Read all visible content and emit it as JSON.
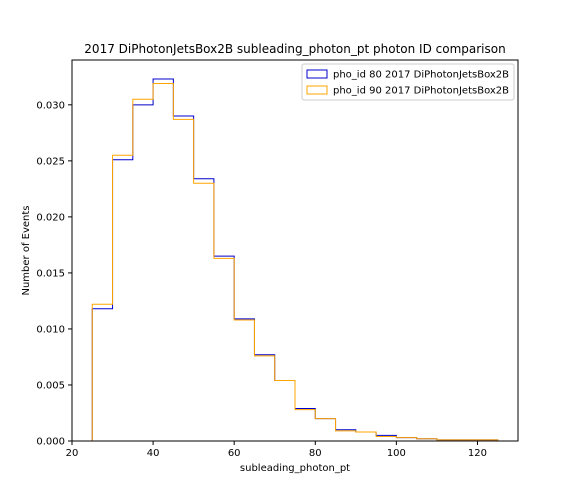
{
  "chart_data": {
    "type": "histogram",
    "title": "2017 DiPhotonJetsBox2B subleading_photon_pt photon ID comparison",
    "xlabel": "subleading_photon_pt",
    "ylabel": "Number of Events",
    "xlim": [
      20,
      130
    ],
    "ylim": [
      0,
      0.034
    ],
    "xticks": [
      20,
      40,
      60,
      80,
      100,
      120
    ],
    "yticks": [
      "0.000",
      "0.005",
      "0.010",
      "0.015",
      "0.020",
      "0.025",
      "0.030"
    ],
    "legend_placement": "top-right",
    "grid": false,
    "bin_edges": [
      25,
      30,
      35,
      40,
      45,
      50,
      55,
      60,
      65,
      70,
      75,
      80,
      85,
      90,
      95,
      100,
      105,
      110,
      115,
      120,
      125
    ],
    "series": [
      {
        "name": "pho_id 80 2017 DiPhotonJetsBox2B",
        "color": "#0000cc",
        "values": [
          0.0118,
          0.0251,
          0.03,
          0.0323,
          0.029,
          0.0234,
          0.0165,
          0.0109,
          0.0077,
          0.0054,
          0.0029,
          0.002,
          0.001,
          0.0008,
          0.0005,
          0.0003,
          0.0002,
          0.0001,
          0.0001,
          0.0001
        ]
      },
      {
        "name": "pho_id 90 2017 DiPhotonJetsBox2B",
        "color": "#ffa500",
        "values": [
          0.0122,
          0.0255,
          0.0305,
          0.0319,
          0.0287,
          0.023,
          0.0163,
          0.0108,
          0.0076,
          0.0054,
          0.0028,
          0.002,
          0.0009,
          0.0008,
          0.0004,
          0.0003,
          0.0002,
          0.0001,
          0.0001,
          0.0001
        ]
      }
    ]
  }
}
